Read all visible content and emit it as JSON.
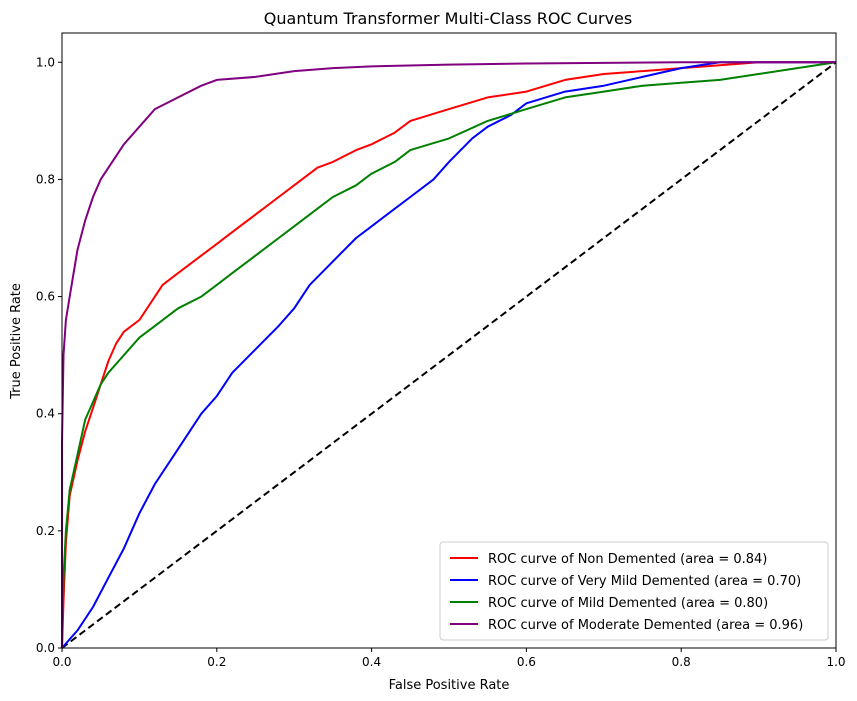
{
  "chart_data": {
    "type": "line",
    "title": "Quantum Transformer Multi-Class ROC Curves",
    "xlabel": "False Positive Rate",
    "ylabel": "True Positive Rate",
    "xlim": [
      0.0,
      1.0
    ],
    "ylim": [
      0.0,
      1.05
    ],
    "xticks": [
      "0.0",
      "0.2",
      "0.4",
      "0.6",
      "0.8",
      "1.0"
    ],
    "yticks": [
      "0.0",
      "0.2",
      "0.4",
      "0.6",
      "0.8",
      "1.0"
    ],
    "grid": false,
    "legend_position": "lower-right",
    "series": [
      {
        "name": "ROC curve of Non Demented (area = 0.84)",
        "color": "#ff0000",
        "x": [
          0,
          0.002,
          0.005,
          0.01,
          0.02,
          0.03,
          0.04,
          0.05,
          0.06,
          0.07,
          0.08,
          0.1,
          0.12,
          0.13,
          0.15,
          0.18,
          0.2,
          0.22,
          0.25,
          0.28,
          0.3,
          0.33,
          0.35,
          0.38,
          0.4,
          0.43,
          0.45,
          0.5,
          0.55,
          0.6,
          0.65,
          0.7,
          0.75,
          0.8,
          0.85,
          0.9,
          0.95,
          1.0
        ],
        "y": [
          0,
          0.08,
          0.18,
          0.26,
          0.32,
          0.37,
          0.41,
          0.45,
          0.49,
          0.52,
          0.54,
          0.56,
          0.6,
          0.62,
          0.64,
          0.67,
          0.69,
          0.71,
          0.74,
          0.77,
          0.79,
          0.82,
          0.83,
          0.85,
          0.86,
          0.88,
          0.9,
          0.92,
          0.94,
          0.95,
          0.97,
          0.98,
          0.985,
          0.99,
          0.995,
          1.0,
          1.0,
          1.0
        ]
      },
      {
        "name": "ROC curve of Very Mild Demented (area = 0.70)",
        "color": "#0000ff",
        "x": [
          0,
          0.02,
          0.04,
          0.06,
          0.08,
          0.1,
          0.12,
          0.15,
          0.18,
          0.2,
          0.22,
          0.25,
          0.28,
          0.3,
          0.32,
          0.35,
          0.38,
          0.4,
          0.43,
          0.45,
          0.48,
          0.5,
          0.53,
          0.55,
          0.58,
          0.6,
          0.65,
          0.7,
          0.75,
          0.8,
          0.85,
          0.9,
          1.0
        ],
        "y": [
          0,
          0.03,
          0.07,
          0.12,
          0.17,
          0.23,
          0.28,
          0.34,
          0.4,
          0.43,
          0.47,
          0.51,
          0.55,
          0.58,
          0.62,
          0.66,
          0.7,
          0.72,
          0.75,
          0.77,
          0.8,
          0.83,
          0.87,
          0.89,
          0.91,
          0.93,
          0.95,
          0.96,
          0.975,
          0.99,
          1.0,
          1.0,
          1.0
        ]
      },
      {
        "name": "ROC curve of Mild Demented (area = 0.80)",
        "color": "#008000",
        "x": [
          0,
          0.002,
          0.005,
          0.01,
          0.02,
          0.03,
          0.04,
          0.05,
          0.06,
          0.08,
          0.1,
          0.12,
          0.15,
          0.18,
          0.2,
          0.22,
          0.25,
          0.28,
          0.3,
          0.33,
          0.35,
          0.38,
          0.4,
          0.43,
          0.45,
          0.5,
          0.55,
          0.6,
          0.65,
          0.7,
          0.75,
          0.8,
          0.85,
          0.9,
          0.95,
          1.0
        ],
        "y": [
          0,
          0.12,
          0.2,
          0.27,
          0.33,
          0.39,
          0.42,
          0.45,
          0.47,
          0.5,
          0.53,
          0.55,
          0.58,
          0.6,
          0.62,
          0.64,
          0.67,
          0.7,
          0.72,
          0.75,
          0.77,
          0.79,
          0.81,
          0.83,
          0.85,
          0.87,
          0.9,
          0.92,
          0.94,
          0.95,
          0.96,
          0.965,
          0.97,
          0.98,
          0.99,
          1.0
        ]
      },
      {
        "name": "ROC curve of Moderate Demented (area = 0.96)",
        "color": "#800080",
        "x": [
          0,
          0.0,
          0.002,
          0.005,
          0.01,
          0.015,
          0.02,
          0.03,
          0.04,
          0.05,
          0.06,
          0.08,
          0.1,
          0.12,
          0.15,
          0.18,
          0.2,
          0.25,
          0.3,
          0.35,
          0.4,
          0.5,
          0.6,
          0.7,
          0.8,
          0.9,
          1.0
        ],
        "y": [
          0,
          0.35,
          0.5,
          0.56,
          0.6,
          0.64,
          0.68,
          0.73,
          0.77,
          0.8,
          0.82,
          0.86,
          0.89,
          0.92,
          0.94,
          0.96,
          0.97,
          0.975,
          0.985,
          0.99,
          0.993,
          0.996,
          0.998,
          0.999,
          1.0,
          1.0,
          1.0
        ]
      },
      {
        "name": "",
        "color": "#000000",
        "dashed": true,
        "x": [
          0,
          1
        ],
        "y": [
          0,
          1
        ]
      }
    ]
  }
}
